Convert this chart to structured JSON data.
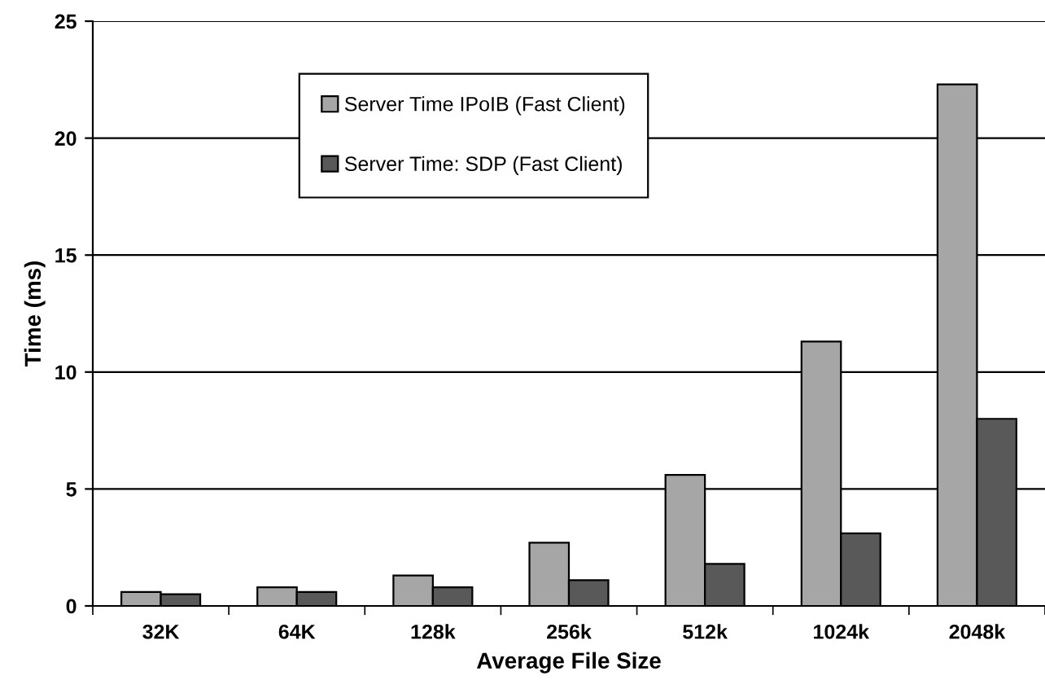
{
  "chart_data": {
    "type": "bar",
    "xlabel": "Average File Size",
    "ylabel": "Time (ms)",
    "categories": [
      "32K",
      "64K",
      "128k",
      "256k",
      "512k",
      "1024k",
      "2048k"
    ],
    "series": [
      {
        "name": "Server Time IPoIB (Fast Client)",
        "color": "#a6a6a6",
        "values": [
          0.6,
          0.8,
          1.3,
          2.7,
          5.6,
          11.3,
          22.3
        ]
      },
      {
        "name": "Server Time: SDP (Fast Client)",
        "color": "#595959",
        "values": [
          0.5,
          0.6,
          0.8,
          1.1,
          1.8,
          3.1,
          8.0
        ]
      }
    ],
    "ylim": [
      0,
      25
    ],
    "yticks": [
      0,
      5,
      10,
      15,
      20,
      25
    ],
    "grid": "y",
    "legend": "top"
  }
}
